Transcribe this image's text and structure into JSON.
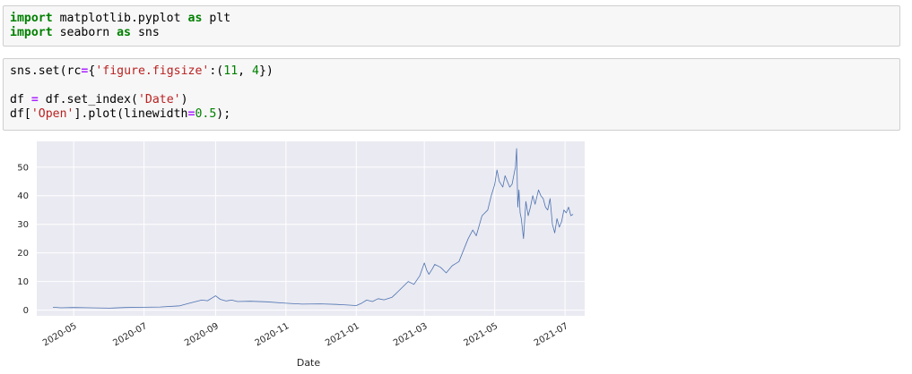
{
  "cells": [
    {
      "lines": [
        [
          [
            "kw",
            "import"
          ],
          [
            "t",
            " matplotlib.pyplot "
          ],
          [
            "kw",
            "as"
          ],
          [
            "t",
            " plt"
          ]
        ],
        [
          [
            "kw",
            "import"
          ],
          [
            "t",
            " seaborn "
          ],
          [
            "kw",
            "as"
          ],
          [
            "t",
            " sns"
          ]
        ]
      ]
    },
    {
      "lines": [
        [
          [
            "t",
            "sns.set(rc"
          ],
          [
            "op",
            "="
          ],
          [
            "t",
            "{"
          ],
          [
            "str",
            "'figure.figsize'"
          ],
          [
            "t",
            ":("
          ],
          [
            "num",
            "11"
          ],
          [
            "t",
            ", "
          ],
          [
            "num",
            "4"
          ],
          [
            "t",
            "})"
          ]
        ],
        [
          [
            "t",
            ""
          ]
        ],
        [
          [
            "t",
            "df "
          ],
          [
            "op",
            "="
          ],
          [
            "t",
            " df.set_index("
          ],
          [
            "str",
            "'Date'"
          ],
          [
            "t",
            ")"
          ]
        ],
        [
          [
            "t",
            "df["
          ],
          [
            "str",
            "'Open'"
          ],
          [
            "t",
            "].plot(linewidth"
          ],
          [
            "op",
            "="
          ],
          [
            "num",
            "0.5"
          ],
          [
            "t",
            ");"
          ]
        ]
      ]
    }
  ],
  "colors": {
    "line": "#4c72b0",
    "plot_bg": "#eaeaf2",
    "grid": "#ffffff",
    "text": "#262626"
  },
  "chart_data": {
    "type": "line",
    "xlabel": "Date",
    "ylabel": "",
    "ylim": [
      -2,
      59
    ],
    "xlim": [
      "2020-03-30",
      "2021-07-18"
    ],
    "yticks": [
      0,
      10,
      20,
      30,
      40,
      50
    ],
    "xticks": [
      "2020-05",
      "2020-07",
      "2020-09",
      "2020-11",
      "2021-01",
      "2021-03",
      "2021-05",
      "2021-07"
    ],
    "grid": true,
    "series": [
      {
        "x": [
          "2020-04-13",
          "2020-04-20",
          "2020-05-01",
          "2020-05-15",
          "2020-06-01",
          "2020-06-15",
          "2020-07-01",
          "2020-07-15",
          "2020-08-01",
          "2020-08-10",
          "2020-08-20",
          "2020-08-25",
          "2020-08-30",
          "2020-09-01",
          "2020-09-05",
          "2020-09-10",
          "2020-09-15",
          "2020-09-20",
          "2020-10-01",
          "2020-10-15",
          "2020-11-01",
          "2020-11-15",
          "2020-12-01",
          "2020-12-15",
          "2021-01-01",
          "2021-01-05",
          "2021-01-10",
          "2021-01-15",
          "2021-01-20",
          "2021-01-25",
          "2021-02-01",
          "2021-02-05",
          "2021-02-10",
          "2021-02-15",
          "2021-02-20",
          "2021-02-25",
          "2021-03-01",
          "2021-03-03",
          "2021-03-05",
          "2021-03-08",
          "2021-03-10",
          "2021-03-15",
          "2021-03-20",
          "2021-03-25",
          "2021-03-31",
          "2021-04-05",
          "2021-04-08",
          "2021-04-12",
          "2021-04-15",
          "2021-04-20",
          "2021-04-25",
          "2021-04-28",
          "2021-05-01",
          "2021-05-03",
          "2021-05-05",
          "2021-05-08",
          "2021-05-10",
          "2021-05-12",
          "2021-05-14",
          "2021-05-16",
          "2021-05-18",
          "2021-05-19",
          "2021-05-20",
          "2021-05-21",
          "2021-05-22",
          "2021-05-23",
          "2021-05-24",
          "2021-05-26",
          "2021-05-28",
          "2021-05-30",
          "2021-06-01",
          "2021-06-03",
          "2021-06-05",
          "2021-06-08",
          "2021-06-10",
          "2021-06-12",
          "2021-06-14",
          "2021-06-16",
          "2021-06-18",
          "2021-06-20",
          "2021-06-22",
          "2021-06-24",
          "2021-06-26",
          "2021-06-28",
          "2021-06-30",
          "2021-07-02",
          "2021-07-04",
          "2021-07-06",
          "2021-07-08"
        ],
        "y": [
          1.0,
          0.8,
          0.9,
          0.8,
          0.7,
          0.9,
          1.0,
          1.1,
          1.5,
          2.5,
          3.5,
          3.3,
          4.5,
          5.0,
          3.8,
          3.2,
          3.5,
          3.0,
          3.1,
          2.9,
          2.4,
          2.1,
          2.2,
          2.0,
          1.6,
          2.3,
          3.5,
          3.0,
          4.0,
          3.6,
          4.5,
          6.0,
          8.0,
          10.0,
          9.0,
          12.0,
          16.5,
          14.0,
          12.5,
          14.5,
          16.0,
          15.0,
          13.0,
          15.5,
          17.0,
          22.0,
          25.0,
          28.0,
          26.0,
          33.0,
          35.0,
          40.0,
          44.0,
          49.0,
          45.0,
          43.0,
          47.0,
          45.0,
          43.0,
          44.0,
          48.0,
          50.0,
          56.5,
          36.0,
          42.0,
          34.0,
          32.0,
          25.0,
          38.0,
          33.0,
          36.0,
          40.0,
          37.0,
          42.0,
          40.0,
          39.0,
          36.0,
          35.0,
          39.0,
          30.0,
          27.0,
          32.0,
          29.0,
          31.0,
          35.0,
          34.0,
          36.0,
          33.0,
          33.5
        ]
      }
    ]
  }
}
